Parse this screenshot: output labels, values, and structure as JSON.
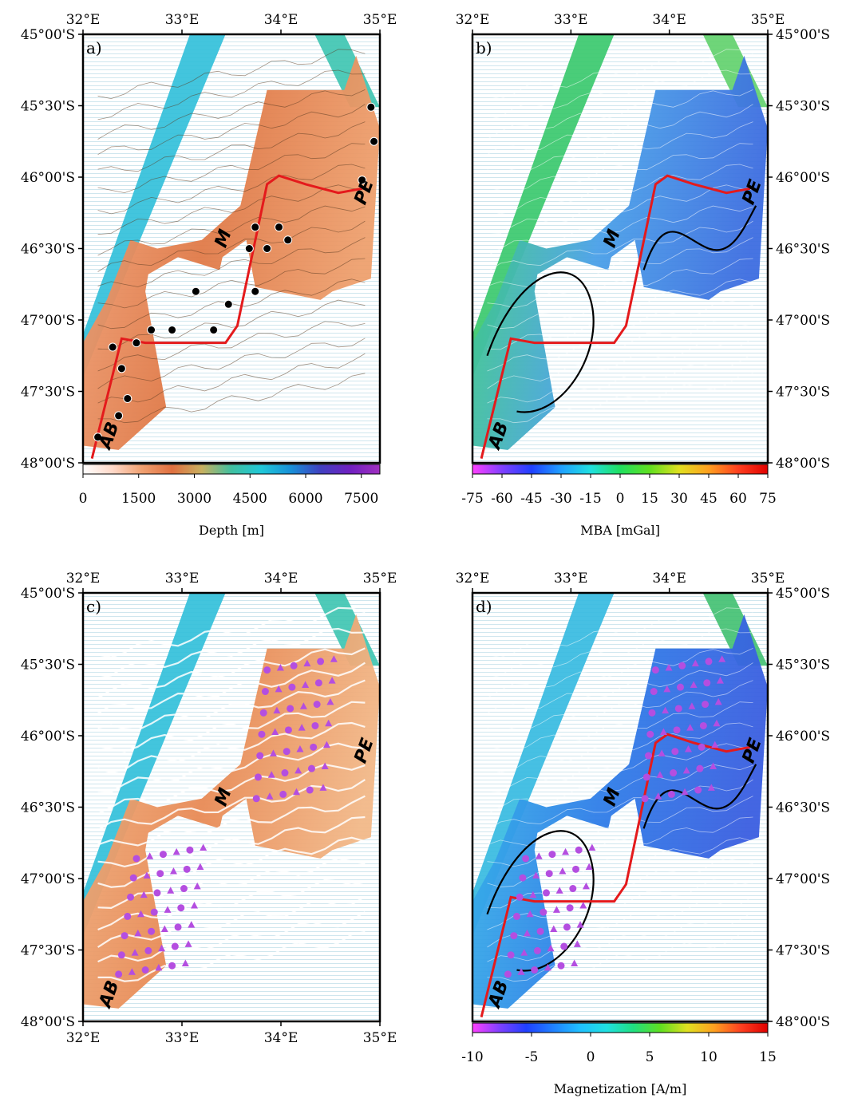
{
  "lon_ticks": [
    "32°E",
    "33°E",
    "34°E",
    "35°E"
  ],
  "lat_ticks": [
    "45°00'S",
    "45°30'S",
    "46°00'S",
    "46°30'S",
    "47°00'S",
    "47°30'S",
    "48°00'S"
  ],
  "panels": [
    {
      "id": "a",
      "letter": "a)",
      "colorbar": {
        "ticks": [
          "0",
          "1500",
          "3000",
          "4500",
          "6000",
          "7500"
        ],
        "label": "Depth [m]",
        "colors": [
          "#ffffff",
          "#ffd8c8",
          "#f0a070",
          "#e07040",
          "#c8b060",
          "#40c0a0",
          "#20c8d8",
          "#1890d8",
          "#4040c0",
          "#7020c0",
          "#a030c0"
        ]
      },
      "features": [
        "M",
        "PE",
        "AB"
      ],
      "colors": {
        "ridge_axis": "#e41a1c",
        "seafloor_shallow": "#e8875a",
        "seafloor_deep": "#1fb8d8"
      }
    },
    {
      "id": "b",
      "letter": "b)",
      "colorbar": {
        "ticks": [
          "-75",
          "-60",
          "-45",
          "-30",
          "-15",
          "0",
          "15",
          "30",
          "45",
          "60",
          "75"
        ],
        "label": "MBA [mGal]",
        "colors": [
          "#ff40ff",
          "#8040ff",
          "#2040ff",
          "#20a0ff",
          "#20e0e0",
          "#20e060",
          "#60e020",
          "#e0e020",
          "#ffa020",
          "#ff4020",
          "#e00000"
        ]
      },
      "features": [
        "M",
        "PE",
        "AB"
      ],
      "colors": {
        "ridge_axis": "#e41a1c",
        "low": "#3a7ae0",
        "high": "#3ccf5a"
      }
    },
    {
      "id": "c",
      "letter": "c)",
      "features": [
        "M",
        "PE",
        "AB"
      ],
      "colors": {
        "picks": "#b44ee0",
        "isochrons": "#ffffff"
      }
    },
    {
      "id": "d",
      "letter": "d)",
      "colorbar": {
        "ticks": [
          "-10",
          "-5",
          "0",
          "5",
          "10",
          "15"
        ],
        "label": "Magnetization [A/m]",
        "colors": [
          "#ff40ff",
          "#8040ff",
          "#2040ff",
          "#2080ff",
          "#20c0ff",
          "#20e0e0",
          "#20e080",
          "#60e020",
          "#e0e020",
          "#ffa020",
          "#ff4020",
          "#e00000"
        ]
      },
      "features": [
        "M",
        "PE",
        "AB"
      ],
      "colors": {
        "ridge_axis": "#e41a1c",
        "low": "#2f7ee8",
        "picks": "#b44ee0"
      }
    }
  ]
}
